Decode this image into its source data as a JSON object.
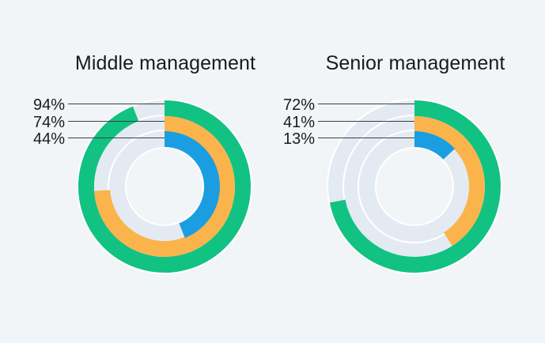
{
  "chart_data": {
    "type": "radial-bar",
    "colors": {
      "outer": "#12c283",
      "middle": "#fbb44b",
      "inner": "#1a9ee1",
      "track": "#e4eaf2",
      "background": "#f1f5f8"
    },
    "charts": [
      {
        "title": "Middle management",
        "values": [
          94,
          74,
          44
        ],
        "labels": [
          "94%",
          "74%",
          "44%"
        ]
      },
      {
        "title": "Senior management",
        "values": [
          72,
          41,
          13
        ],
        "labels": [
          "72%",
          "41%",
          "13%"
        ]
      }
    ]
  }
}
